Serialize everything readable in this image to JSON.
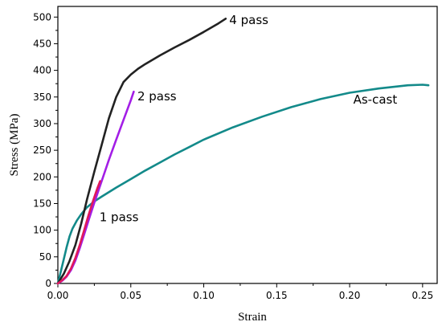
{
  "chart_data": {
    "type": "line",
    "title": "",
    "xlabel": "Strain",
    "ylabel": "Stress (MPa)",
    "xlim": [
      0.0,
      0.26
    ],
    "ylim": [
      0,
      520
    ],
    "xticks": [
      0.0,
      0.05,
      0.1,
      0.15,
      0.2,
      0.25
    ],
    "xtick_labels": [
      "0.00",
      "0.05",
      "0.10",
      "0.15",
      "0.20",
      "0.25"
    ],
    "yticks": [
      0,
      50,
      100,
      150,
      200,
      250,
      300,
      350,
      400,
      450,
      500
    ],
    "ytick_labels": [
      "0",
      "50",
      "100",
      "150",
      "200",
      "250",
      "300",
      "350",
      "400",
      "450",
      "500"
    ],
    "grid": false,
    "legend": "none",
    "series": [
      {
        "name": "As-cast",
        "color": "#138a8a",
        "label_anchor": [
          0.2025,
          338
        ],
        "x": [
          0.0,
          0.002,
          0.004,
          0.006,
          0.008,
          0.01,
          0.013,
          0.016,
          0.02,
          0.025,
          0.03,
          0.04,
          0.05,
          0.06,
          0.07,
          0.08,
          0.09,
          0.1,
          0.12,
          0.14,
          0.16,
          0.18,
          0.2,
          0.22,
          0.24,
          0.25,
          0.254
        ],
        "y": [
          0,
          22,
          45,
          68,
          88,
          103,
          118,
          130,
          143,
          154,
          163,
          180,
          196,
          212,
          227,
          242,
          256,
          270,
          293,
          313,
          331,
          346,
          358,
          366,
          372,
          373,
          372
        ]
      },
      {
        "name": "1 pass",
        "color": "#e0185a",
        "label_anchor": [
          0.0285,
          117
        ],
        "x": [
          0.0,
          0.003,
          0.006,
          0.009,
          0.012,
          0.015,
          0.018,
          0.021,
          0.024,
          0.027,
          0.029
        ],
        "y": [
          0,
          6,
          14,
          28,
          48,
          72,
          100,
          128,
          154,
          178,
          192
        ]
      },
      {
        "name": "2 pass",
        "color": "#a31ee6",
        "label_anchor": [
          0.0545,
          344
        ],
        "x": [
          0.0,
          0.003,
          0.006,
          0.009,
          0.012,
          0.015,
          0.018,
          0.021,
          0.025,
          0.03,
          0.035,
          0.04,
          0.045,
          0.05,
          0.052
        ],
        "y": [
          0,
          5,
          13,
          25,
          43,
          66,
          92,
          118,
          152,
          192,
          232,
          270,
          307,
          344,
          360
        ]
      },
      {
        "name": "4 pass",
        "color": "#222222",
        "label_anchor": [
          0.1175,
          487
        ],
        "x": [
          0.0,
          0.004,
          0.008,
          0.012,
          0.016,
          0.02,
          0.025,
          0.03,
          0.035,
          0.04,
          0.045,
          0.05,
          0.055,
          0.06,
          0.07,
          0.08,
          0.09,
          0.1,
          0.11,
          0.115
        ],
        "y": [
          0,
          18,
          42,
          72,
          112,
          158,
          210,
          260,
          310,
          350,
          378,
          392,
          403,
          412,
          428,
          443,
          457,
          472,
          488,
          497
        ]
      }
    ]
  }
}
